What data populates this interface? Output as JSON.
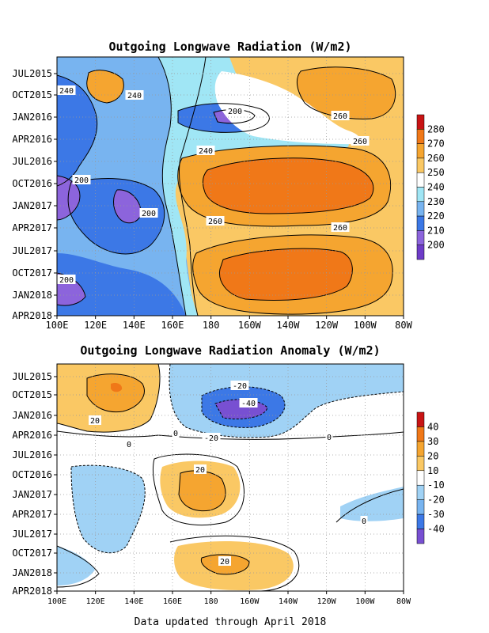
{
  "footer": "Data updated through April 2018",
  "chart_data": [
    {
      "type": "heatmap",
      "title": "Outgoing Longwave Radiation (W/m2)",
      "xlabel": "",
      "ylabel": "",
      "x_ticks": [
        "100E",
        "120E",
        "140E",
        "160E",
        "180",
        "160W",
        "140W",
        "120W",
        "100W",
        "80W"
      ],
      "y_ticks": [
        "JUL2015",
        "OCT2015",
        "JAN2016",
        "APR2016",
        "JUL2016",
        "OCT2016",
        "JAN2017",
        "APR2017",
        "JUL2017",
        "OCT2017",
        "JAN2018",
        "APR2018"
      ],
      "colorbar": {
        "levels": [
          "280",
          "270",
          "260",
          "250",
          "240",
          "230",
          "220",
          "210",
          "200"
        ],
        "colors": [
          "#c81414",
          "#f07818",
          "#f5a530",
          "#fac864",
          "#ffffff",
          "#a0e6f5",
          "#78b4f0",
          "#3c78e6",
          "#8c64dc",
          "#6e3cc8"
        ]
      },
      "contour_labels": [
        "240",
        "240",
        "200",
        "260",
        "260",
        "240",
        "200",
        "200",
        "260",
        "260",
        "200"
      ],
      "grid": true
    },
    {
      "type": "heatmap",
      "title": "Outgoing Longwave Radiation Anomaly (W/m2)",
      "xlabel": "",
      "ylabel": "",
      "x_ticks": [
        "100E",
        "120E",
        "140E",
        "160E",
        "180",
        "160W",
        "140W",
        "120W",
        "100W",
        "80W"
      ],
      "y_ticks": [
        "JUL2015",
        "OCT2015",
        "JAN2016",
        "APR2016",
        "JUL2016",
        "OCT2016",
        "JAN2017",
        "APR2017",
        "JUL2017",
        "OCT2017",
        "JAN2018",
        "APR2018"
      ],
      "colorbar": {
        "levels": [
          "40",
          "30",
          "20",
          "10",
          "-10",
          "-20",
          "-30",
          "-40"
        ],
        "colors": [
          "#c81414",
          "#f07818",
          "#f5a530",
          "#fac864",
          "#ffffff",
          "#a0d2f5",
          "#78b4f0",
          "#3c78e6",
          "#7850d2"
        ]
      },
      "contour_labels": [
        "-20",
        "-40",
        "20",
        "0",
        "-20",
        "0",
        "0",
        "20",
        "20",
        "0"
      ],
      "grid": true
    }
  ]
}
